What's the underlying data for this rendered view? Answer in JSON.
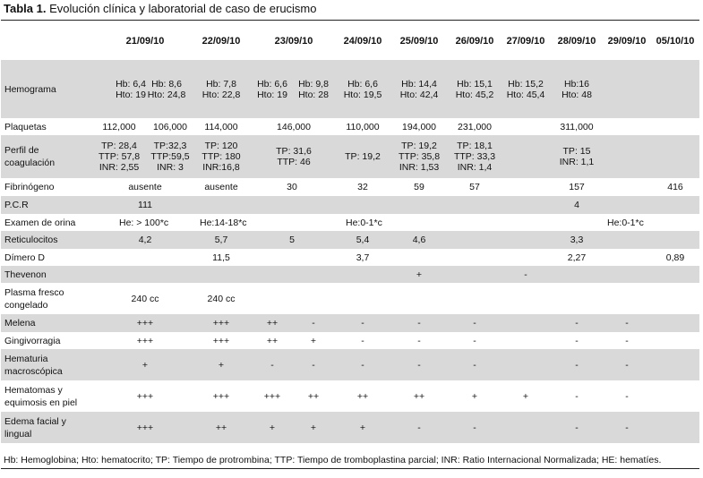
{
  "title": {
    "label": "Tabla 1.",
    "text": " Evolución clínica y laboratorial de caso de erucismo"
  },
  "dates": [
    "21/09/10",
    "22/09/10",
    "23/09/10",
    "24/09/10",
    "25/09/10",
    "26/09/10",
    "27/09/10",
    "28/09/10",
    "29/09/10",
    "05/10/10"
  ],
  "rows": [
    {
      "label": [
        "Hemograma"
      ],
      "shade": true,
      "cells": [
        [
          "Hb: 6,4",
          "Hto: 19"
        ],
        [
          "Hb: 8,6",
          "Hto: 24,8"
        ],
        [
          "Hb: 7,8",
          "Hto: 22,8"
        ],
        [
          "Hb: 6,6",
          "Hto: 19"
        ],
        [
          "Hb: 9,8",
          "Hto: 28"
        ],
        [
          "Hb: 6,6",
          "Hto: 19,5"
        ],
        [
          "Hb: 14,4",
          "Hto: 42,4"
        ],
        [
          "Hb: 15,1",
          "Hto: 45,2"
        ],
        [
          "Hb: 15,2",
          "Hto: 45,4"
        ],
        [
          "Hb:16",
          "Hto: 48"
        ]
      ]
    },
    {
      "label": [
        "Plaquetas"
      ],
      "shade": false,
      "cells": [
        [
          "112,000"
        ],
        [
          "106,000"
        ],
        [
          "114,000"
        ],
        [
          "146,000"
        ],
        [
          "110,000"
        ],
        [
          "194,000"
        ],
        [
          "231,000"
        ],
        [
          "311,000"
        ]
      ]
    },
    {
      "label": [
        "Perfil de",
        "coagulación"
      ],
      "shade": true,
      "cells": [
        [
          "TP: 28,4",
          "TTP: 57,8",
          "INR: 2,55"
        ],
        [
          "TP:32,3",
          "TTP:59,5",
          "INR: 3"
        ],
        [
          "TP: 120",
          "TTP: 180",
          "INR:16,8"
        ],
        [
          "TP: 31,6",
          "TTP: 46"
        ],
        [
          "TP: 19,2"
        ],
        [
          "TP: 19,2",
          "TTP: 35,8",
          "INR: 1,53"
        ],
        [
          "TP: 18,1",
          "TTP: 33,3",
          "INR: 1,4"
        ],
        [
          "TP: 15",
          "INR: 1,1"
        ]
      ]
    },
    {
      "label": [
        "Fibrinógeno"
      ],
      "shade": false,
      "cells": [
        [
          "ausente"
        ],
        [
          "ausente"
        ],
        [
          "30"
        ],
        [
          "32"
        ],
        [
          "59"
        ],
        [
          "57"
        ],
        [
          "157"
        ],
        [
          "416"
        ]
      ]
    },
    {
      "label": [
        "P.C.R"
      ],
      "shade": true,
      "cells": [
        [
          "111"
        ],
        [
          "4"
        ]
      ]
    },
    {
      "label": [
        "Examen de orina"
      ],
      "shade": false,
      "cells": [
        [
          "He: > 100*c"
        ],
        [
          "He:14-18*c"
        ],
        [
          "He:0-1*c"
        ],
        [
          "He:0-1*c"
        ]
      ]
    },
    {
      "label": [
        "Reticulocitos"
      ],
      "shade": true,
      "cells": [
        [
          "4,2"
        ],
        [
          "5,7"
        ],
        [
          "5"
        ],
        [
          "5,4"
        ],
        [
          "4,6"
        ],
        [
          "3,3"
        ]
      ]
    },
    {
      "label": [
        "Dímero D"
      ],
      "shade": false,
      "cells": [
        [
          "11,5"
        ],
        [
          "3,7"
        ],
        [
          "2,27"
        ],
        [
          "0,89"
        ]
      ]
    },
    {
      "label": [
        "Thevenon"
      ],
      "shade": true,
      "cells": [
        [
          "+"
        ],
        [
          "-"
        ]
      ]
    },
    {
      "label": [
        "Plasma fresco",
        "congelado"
      ],
      "shade": false,
      "cells": [
        [
          "240 cc"
        ],
        [
          "240 cc"
        ]
      ]
    },
    {
      "label": [
        "Melena"
      ],
      "shade": true,
      "cells": [
        [
          "+++"
        ],
        [
          "+++"
        ],
        [
          "++"
        ],
        [
          "-"
        ],
        [
          "-"
        ],
        [
          "-"
        ],
        [
          "-"
        ],
        [
          "-"
        ],
        [
          "-"
        ]
      ]
    },
    {
      "label": [
        "Gingivorragia"
      ],
      "shade": false,
      "cells": [
        [
          "+++"
        ],
        [
          "+++"
        ],
        [
          "++"
        ],
        [
          "+"
        ],
        [
          "-"
        ],
        [
          "-"
        ],
        [
          "-"
        ],
        [
          "-"
        ],
        [
          "-"
        ]
      ]
    },
    {
      "label": [
        "Hematuria",
        "macroscópica"
      ],
      "shade": true,
      "cells": [
        [
          "+"
        ],
        [
          "+"
        ],
        [
          "-"
        ],
        [
          "-"
        ],
        [
          "-"
        ],
        [
          "-"
        ],
        [
          "-"
        ],
        [
          "-"
        ],
        [
          "-"
        ]
      ]
    },
    {
      "label": [
        "Hematomas y",
        "equimosis en piel"
      ],
      "shade": false,
      "cells": [
        [
          "+++"
        ],
        [
          "+++"
        ],
        [
          "+++"
        ],
        [
          "++"
        ],
        [
          "++"
        ],
        [
          "++"
        ],
        [
          "+"
        ],
        [
          "+"
        ],
        [
          "-"
        ],
        [
          "-"
        ]
      ]
    },
    {
      "label": [
        "Edema facial y",
        "lingual"
      ],
      "shade": true,
      "cells": [
        [
          "+++"
        ],
        [
          "++"
        ],
        [
          "+"
        ],
        [
          "+"
        ],
        [
          "+"
        ],
        [
          "-"
        ],
        [
          "-"
        ],
        [
          "-"
        ],
        [
          "-"
        ]
      ]
    }
  ],
  "footnote": "Hb: Hemoglobina; Hto: hematocrito; TP: Tiempo de protrombina; TTP: Tiempo de tromboplastina parcial; INR: Ratio Internacional Normalizada; HE: hematíes."
}
